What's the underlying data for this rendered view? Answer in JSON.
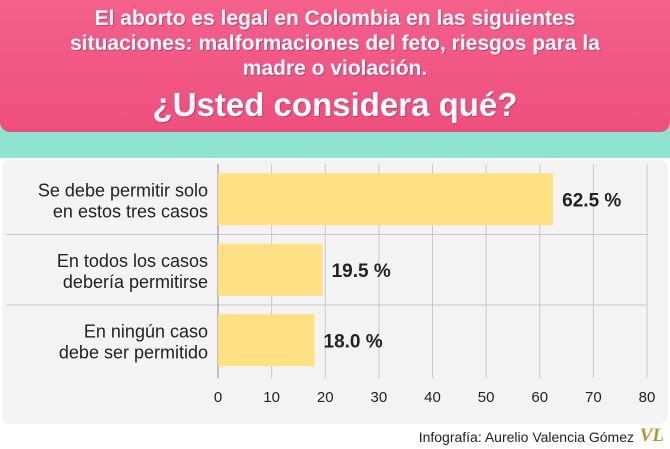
{
  "header": {
    "question_lines": [
      "El aborto es legal en Colombia en las siguientes",
      "situaciones: malformaciones del feto, riesgos para la",
      "madre o violación."
    ],
    "subquestion": "¿Usted considera qué?"
  },
  "colors": {
    "header": "#f05885",
    "band": "#8fe3d0",
    "bar": "#ffe082",
    "panel": "#f3f3f3"
  },
  "chart_data": {
    "type": "bar",
    "orientation": "horizontal",
    "categories": [
      [
        "Se debe permitir solo",
        "en estos tres casos"
      ],
      [
        "En todos los casos",
        "debería permitirse"
      ],
      [
        "En ningún caso",
        "debe ser permitido"
      ]
    ],
    "values": [
      62.5,
      19.5,
      18.0
    ],
    "value_labels": [
      "62.5 %",
      "19.5 %",
      "18.0 %"
    ],
    "xlim": [
      0,
      80
    ],
    "xticks": [
      0,
      10,
      20,
      30,
      40,
      50,
      60,
      70,
      80
    ],
    "grid": true,
    "title": "",
    "xlabel": "",
    "ylabel": ""
  },
  "footer": {
    "credit": "Infografía: Aurelio Valencia Gómez",
    "logo": "VL"
  }
}
